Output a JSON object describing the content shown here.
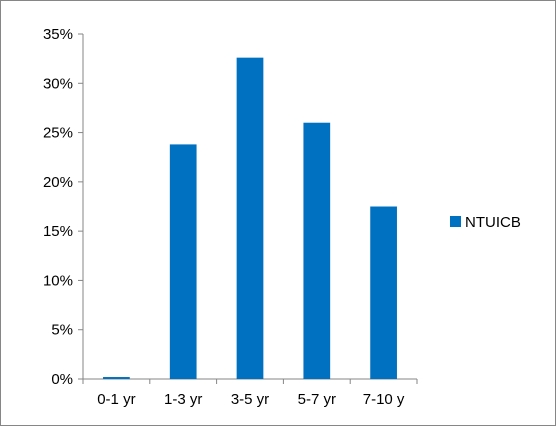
{
  "chart_data": {
    "type": "bar",
    "categories": [
      "0-1 yr",
      "1-3 yr",
      "3-5 yr",
      "5-7 yr",
      "7-10 y"
    ],
    "series": [
      {
        "name": "NTUICB",
        "values": [
          0.2,
          23.8,
          32.6,
          26.0,
          17.5
        ],
        "color": "#0070C0"
      }
    ],
    "ylim": [
      0,
      35
    ],
    "yticks": [
      "0%",
      "5%",
      "10%",
      "15%",
      "20%",
      "25%",
      "30%",
      "35%"
    ],
    "ytick_values": [
      0,
      5,
      10,
      15,
      20,
      25,
      30,
      35
    ],
    "y_unit": "percent",
    "grid": false,
    "legend_position": "right"
  }
}
